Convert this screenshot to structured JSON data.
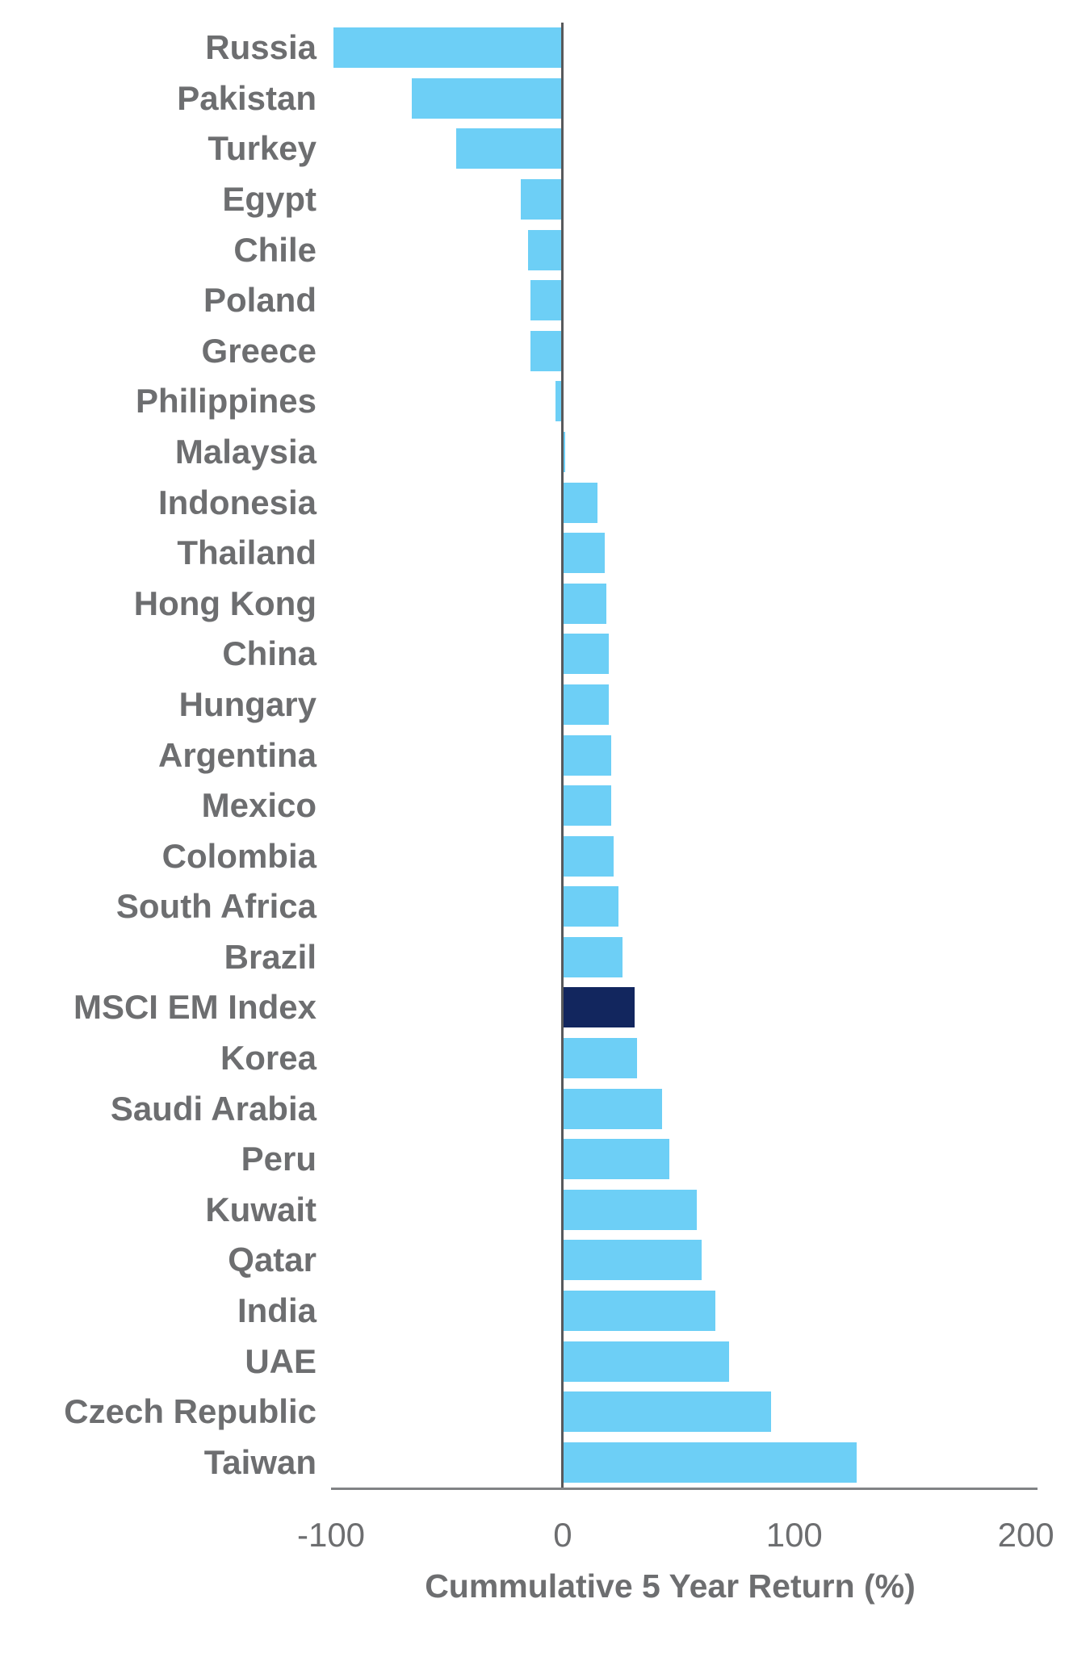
{
  "chart_data": {
    "type": "bar",
    "orientation": "horizontal",
    "title": "",
    "xlabel": "Cummulative 5 Year Return (%)",
    "ylabel": "",
    "xlim": [
      -100,
      205
    ],
    "x_ticks": [
      "-100",
      "0",
      "100",
      "200"
    ],
    "x_tick_values": [
      -100,
      0,
      100,
      200
    ],
    "grid": false,
    "legend": "none",
    "categories": [
      "Russia",
      "Pakistan",
      "Turkey",
      "Egypt",
      "Chile",
      "Poland",
      "Greece",
      "Philippines",
      "Malaysia",
      "Indonesia",
      "Thailand",
      "Hong Kong",
      "China",
      "Hungary",
      "Argentina",
      "Mexico",
      "Colombia",
      "South Africa",
      "Brazil",
      "MSCI EM Index",
      "Korea",
      "Saudi Arabia",
      "Peru",
      "Kuwait",
      "Qatar",
      "India",
      "UAE",
      "Czech Republic",
      "Taiwan"
    ],
    "values": [
      -99,
      -65,
      -46,
      -18,
      -15,
      -14,
      -14,
      -3,
      1,
      15,
      18,
      19,
      20,
      20,
      21,
      21,
      22,
      24,
      26,
      31,
      32,
      43,
      46,
      58,
      60,
      66,
      72,
      90,
      127
    ],
    "highlight_category": "MSCI EM Index",
    "colors": {
      "bar": "#6DCFF6",
      "highlight_bar": "#12265E",
      "label_text": "#6D6E70",
      "tick_text": "#6D6E70",
      "zero_axis_line": "#58595B",
      "bottom_axis_line": "#808285"
    }
  }
}
